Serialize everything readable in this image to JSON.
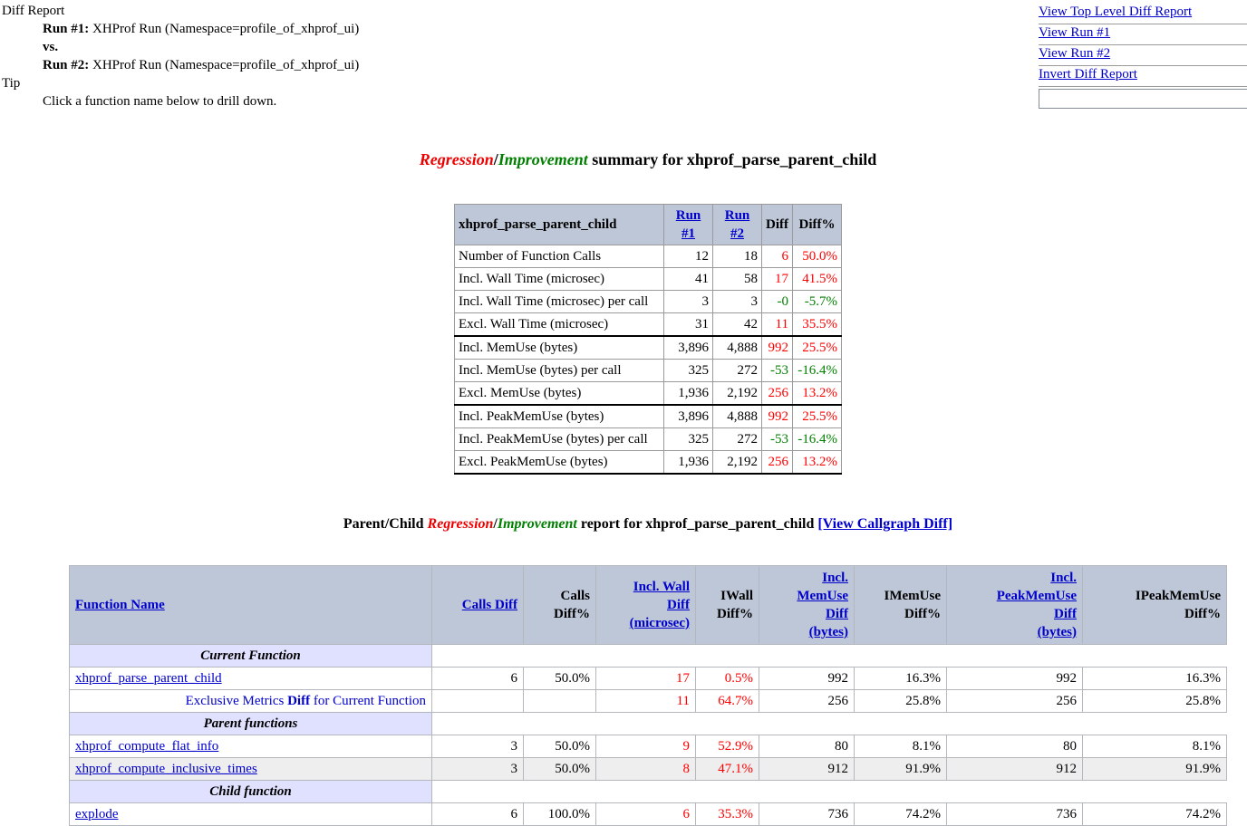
{
  "header": {
    "title": "Diff Report",
    "run1_label": "Run #1:",
    "run1_text": " XHProf Run (Namespace=profile_of_xhprof_ui)",
    "vs_label": "vs.",
    "run2_label": "Run #2:",
    "run2_text": " XHProf Run (Namespace=profile_of_xhprof_ui)",
    "tip_label": "Tip",
    "tip_text": "Click a function name below to drill down."
  },
  "nav": {
    "links": [
      "View Top Level Diff Report",
      "View Run #1",
      "View Run #2",
      "Invert Diff Report"
    ],
    "search_value": ""
  },
  "summary_heading": {
    "regression": "Regression",
    "separator": "/",
    "improvement": "Improvement",
    "suffix": " summary for xhprof_parse_parent_child"
  },
  "summary_table": {
    "columns": [
      "xhprof_parse_parent_child",
      "Run #1",
      "Run #2",
      "Diff",
      "Diff%"
    ],
    "rows": [
      {
        "metric": "Number of Function Calls",
        "run1": "12",
        "run2": "18",
        "diff": "6",
        "diff_pct": "50.0%",
        "trend": "regression",
        "group_end": false
      },
      {
        "metric": "Incl. Wall Time (microsec)",
        "run1": "41",
        "run2": "58",
        "diff": "17",
        "diff_pct": "41.5%",
        "trend": "regression",
        "group_end": false
      },
      {
        "metric": "Incl. Wall Time (microsec) per call",
        "run1": "3",
        "run2": "3",
        "diff": "-0",
        "diff_pct": "-5.7%",
        "trend": "improvement",
        "group_end": false
      },
      {
        "metric": "Excl. Wall Time (microsec)",
        "run1": "31",
        "run2": "42",
        "diff": "11",
        "diff_pct": "35.5%",
        "trend": "regression",
        "group_end": true
      },
      {
        "metric": "Incl. MemUse (bytes)",
        "run1": "3,896",
        "run2": "4,888",
        "diff": "992",
        "diff_pct": "25.5%",
        "trend": "regression",
        "group_end": false
      },
      {
        "metric": "Incl. MemUse (bytes) per call",
        "run1": "325",
        "run2": "272",
        "diff": "-53",
        "diff_pct": "-16.4%",
        "trend": "improvement",
        "group_end": false
      },
      {
        "metric": "Excl. MemUse (bytes)",
        "run1": "1,936",
        "run2": "2,192",
        "diff": "256",
        "diff_pct": "13.2%",
        "trend": "regression",
        "group_end": true
      },
      {
        "metric": "Incl. PeakMemUse (bytes)",
        "run1": "3,896",
        "run2": "4,888",
        "diff": "992",
        "diff_pct": "25.5%",
        "trend": "regression",
        "group_end": false
      },
      {
        "metric": "Incl. PeakMemUse (bytes) per call",
        "run1": "325",
        "run2": "272",
        "diff": "-53",
        "diff_pct": "-16.4%",
        "trend": "improvement",
        "group_end": false
      },
      {
        "metric": "Excl. PeakMemUse (bytes)",
        "run1": "1,936",
        "run2": "2,192",
        "diff": "256",
        "diff_pct": "13.2%",
        "trend": "regression",
        "group_end": false
      }
    ]
  },
  "report_heading": {
    "prefix": "Parent/Child ",
    "regression": "Regression",
    "separator": "/",
    "improvement": "Improvement",
    "middle": " report for xhprof_parse_parent_child ",
    "callgraph_link": "[View Callgraph Diff]"
  },
  "report_table": {
    "columns": [
      {
        "label": "Function Name",
        "is_link": true
      },
      {
        "label": "Calls Diff",
        "is_link": true
      },
      {
        "label": "Calls\nDiff%",
        "is_link": false
      },
      {
        "label": "Incl. Wall\nDiff\n(microsec)",
        "is_link": true
      },
      {
        "label": "IWall\nDiff%",
        "is_link": false
      },
      {
        "label": "Incl.\nMemUse\nDiff\n(bytes)",
        "is_link": true
      },
      {
        "label": "IMemUse\nDiff%",
        "is_link": false
      },
      {
        "label": "Incl.\nPeakMemUse\nDiff\n(bytes)",
        "is_link": true
      },
      {
        "label": "IPeakMemUse\nDiff%",
        "is_link": false
      }
    ],
    "rows": [
      {
        "type": "section",
        "label": "Current Function"
      },
      {
        "type": "function",
        "name": "xhprof_parse_parent_child",
        "shaded": false,
        "cells": [
          {
            "v": "6"
          },
          {
            "v": "50.0%"
          },
          {
            "v": "17",
            "hl": true
          },
          {
            "v": "0.5%",
            "hl": true
          },
          {
            "v": "992"
          },
          {
            "v": "16.3%"
          },
          {
            "v": "992"
          },
          {
            "v": "16.3%"
          }
        ]
      },
      {
        "type": "note",
        "note_plain1": "Exclusive Metrics ",
        "note_bold": "Diff",
        "note_plain2": " for Current Function",
        "shaded": false,
        "cells": [
          {
            "v": ""
          },
          {
            "v": ""
          },
          {
            "v": "11",
            "hl": true
          },
          {
            "v": "64.7%",
            "hl": true
          },
          {
            "v": "256"
          },
          {
            "v": "25.8%"
          },
          {
            "v": "256"
          },
          {
            "v": "25.8%"
          }
        ]
      },
      {
        "type": "section",
        "label": "Parent functions"
      },
      {
        "type": "function",
        "name": "xhprof_compute_flat_info",
        "shaded": false,
        "cells": [
          {
            "v": "3"
          },
          {
            "v": "50.0%"
          },
          {
            "v": "9",
            "hl": true
          },
          {
            "v": "52.9%",
            "hl": true
          },
          {
            "v": "80"
          },
          {
            "v": "8.1%"
          },
          {
            "v": "80"
          },
          {
            "v": "8.1%"
          }
        ]
      },
      {
        "type": "function",
        "name": "xhprof_compute_inclusive_times",
        "shaded": true,
        "cells": [
          {
            "v": "3"
          },
          {
            "v": "50.0%"
          },
          {
            "v": "8",
            "hl": true
          },
          {
            "v": "47.1%",
            "hl": true
          },
          {
            "v": "912"
          },
          {
            "v": "91.9%"
          },
          {
            "v": "912"
          },
          {
            "v": "91.9%"
          }
        ]
      },
      {
        "type": "section",
        "label": "Child function"
      },
      {
        "type": "function",
        "name": "explode",
        "shaded": false,
        "cells": [
          {
            "v": "6"
          },
          {
            "v": "100.0%"
          },
          {
            "v": "6",
            "hl": true
          },
          {
            "v": "35.3%",
            "hl": true
          },
          {
            "v": "736"
          },
          {
            "v": "74.2%"
          },
          {
            "v": "736"
          },
          {
            "v": "74.2%"
          }
        ]
      }
    ]
  },
  "colors": {
    "link_blue": "#0000cc",
    "regression_red": "#ff0000",
    "improvement_green": "#008000",
    "table_header_bg": "#bdc7d8",
    "section_band_bg": "#e0e0ff",
    "shaded_row_bg": "#eeeeee"
  }
}
